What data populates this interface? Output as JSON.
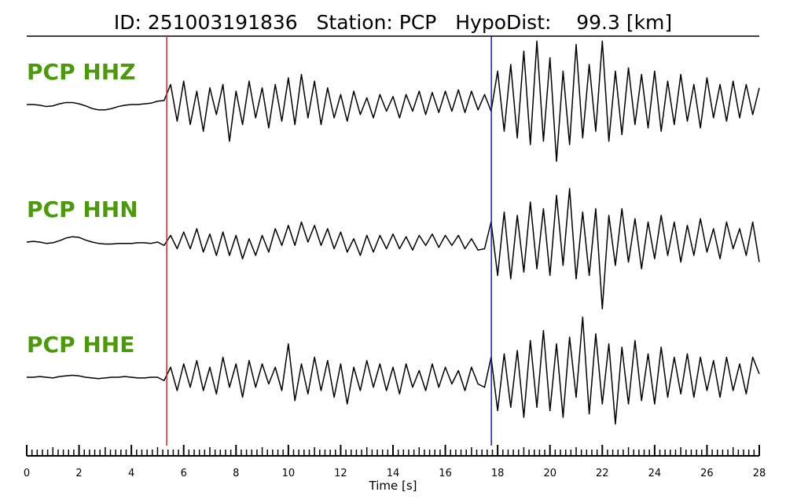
{
  "chart_data": {
    "type": "line",
    "title": "ID: 251003191836   Station: PCP   HypoDist:    99.3 [km]",
    "xlabel": "Time [s]",
    "xlim": [
      0,
      28
    ],
    "xticks": [
      0,
      2,
      4,
      6,
      8,
      10,
      12,
      14,
      16,
      18,
      20,
      22,
      24,
      26,
      28
    ],
    "xminor_step": 0.2,
    "ylim": [
      -1,
      1
    ],
    "label_color": "#4a9a0a",
    "picks": [
      {
        "x": 5.35,
        "color": "#e0242a"
      },
      {
        "x": 17.76,
        "color": "#1515d0"
      }
    ],
    "x": [
      0,
      0.25,
      0.5,
      0.75,
      1,
      1.25,
      1.5,
      1.75,
      2,
      2.25,
      2.5,
      2.75,
      3,
      3.25,
      3.5,
      3.75,
      4,
      4.25,
      4.5,
      4.75,
      5,
      5.25,
      5.5,
      5.75,
      6,
      6.25,
      6.5,
      6.75,
      7,
      7.25,
      7.5,
      7.75,
      8,
      8.25,
      8.5,
      8.75,
      9,
      9.25,
      9.5,
      9.75,
      10,
      10.25,
      10.5,
      10.75,
      11,
      11.25,
      11.5,
      11.75,
      12,
      12.25,
      12.5,
      12.75,
      13,
      13.25,
      13.5,
      13.75,
      14,
      14.25,
      14.5,
      14.75,
      15,
      15.25,
      15.5,
      15.75,
      16,
      16.25,
      16.5,
      16.75,
      17,
      17.25,
      17.5,
      17.75,
      18,
      18.25,
      18.5,
      18.75,
      19,
      19.25,
      19.5,
      19.75,
      20,
      20.25,
      20.5,
      20.75,
      21,
      21.25,
      21.5,
      21.75,
      22,
      22.25,
      22.5,
      22.75,
      23,
      23.25,
      23.5,
      23.75,
      24,
      24.25,
      24.5,
      24.75,
      25,
      25.25,
      25.5,
      25.75,
      26,
      26.25,
      26.5,
      26.75,
      27,
      27.25,
      27.5,
      27.75,
      28
    ],
    "series": [
      {
        "name": "PCP HHZ",
        "color": "#000000",
        "values": [
          0,
          0,
          -0.01,
          -0.03,
          -0.02,
          0.01,
          0.03,
          0.03,
          0.01,
          -0.02,
          -0.06,
          -0.08,
          -0.08,
          -0.06,
          -0.03,
          -0.01,
          0,
          0,
          0.01,
          0.02,
          0.05,
          0.06,
          0.3,
          -0.25,
          0.35,
          -0.3,
          0.2,
          -0.4,
          0.25,
          -0.15,
          0.3,
          -0.55,
          0.2,
          -0.3,
          0.35,
          -0.2,
          0.25,
          -0.35,
          0.3,
          -0.25,
          0.4,
          -0.3,
          0.45,
          -0.2,
          0.35,
          -0.3,
          0.25,
          -0.2,
          0.15,
          -0.25,
          0.2,
          -0.15,
          0.1,
          -0.2,
          0.15,
          -0.1,
          0.12,
          -0.2,
          0.15,
          -0.1,
          0.2,
          -0.15,
          0.18,
          -0.12,
          0.2,
          -0.1,
          0.22,
          -0.12,
          0.2,
          -0.08,
          0.15,
          -0.1,
          0.5,
          -0.4,
          0.6,
          -0.5,
          0.8,
          -0.6,
          0.95,
          -0.55,
          0.7,
          -0.85,
          0.5,
          -0.6,
          0.9,
          -0.5,
          0.6,
          -0.4,
          0.95,
          -0.55,
          0.5,
          -0.45,
          0.55,
          -0.3,
          0.45,
          -0.35,
          0.5,
          -0.4,
          0.35,
          -0.3,
          0.45,
          -0.25,
          0.3,
          -0.35,
          0.4,
          -0.2,
          0.3,
          -0.25,
          0.35,
          -0.2,
          0.3,
          -0.15,
          0.25
        ]
      },
      {
        "name": "PCP HHN",
        "color": "#000000",
        "values": [
          0,
          0.01,
          0,
          -0.02,
          -0.01,
          0.02,
          0.06,
          0.08,
          0.07,
          0.03,
          0,
          -0.02,
          -0.03,
          -0.03,
          -0.02,
          -0.02,
          -0.02,
          -0.01,
          -0.01,
          -0.02,
          0,
          -0.05,
          0.1,
          -0.1,
          0.15,
          -0.1,
          0.2,
          -0.15,
          0.12,
          -0.2,
          0.15,
          -0.2,
          0.1,
          -0.25,
          0.05,
          -0.2,
          0.1,
          -0.15,
          0.2,
          -0.05,
          0.25,
          -0.05,
          0.3,
          0,
          0.25,
          -0.05,
          0.2,
          -0.1,
          0.15,
          -0.15,
          0.05,
          -0.2,
          0.1,
          -0.15,
          0.1,
          -0.1,
          0.12,
          -0.1,
          0.08,
          -0.12,
          0.1,
          -0.05,
          0.12,
          -0.08,
          0.1,
          -0.05,
          0.1,
          -0.1,
          0.05,
          -0.12,
          -0.1,
          0.3,
          -0.5,
          0.45,
          -0.55,
          0.4,
          -0.45,
          0.6,
          -0.4,
          0.5,
          -0.5,
          0.7,
          -0.35,
          0.8,
          -0.55,
          0.45,
          -0.5,
          0.5,
          -1.0,
          0.4,
          -0.35,
          0.5,
          -0.3,
          0.35,
          -0.4,
          0.3,
          -0.25,
          0.4,
          -0.2,
          0.3,
          -0.3,
          0.25,
          -0.2,
          0.35,
          -0.15,
          0.2,
          -0.25,
          0.3,
          -0.1,
          0.2,
          -0.2,
          0.3,
          -0.3
        ]
      },
      {
        "name": "PCP HHE",
        "color": "#000000",
        "values": [
          0,
          0,
          0.01,
          0,
          -0.01,
          0.01,
          0.02,
          0.03,
          0.02,
          0,
          -0.01,
          -0.02,
          -0.01,
          0,
          0,
          0.01,
          0,
          -0.01,
          -0.01,
          0,
          0,
          -0.05,
          0.15,
          -0.2,
          0.2,
          -0.15,
          0.25,
          -0.2,
          0.15,
          -0.25,
          0.3,
          -0.15,
          0.2,
          -0.3,
          0.25,
          -0.15,
          0.2,
          -0.1,
          0.15,
          -0.2,
          0.5,
          -0.35,
          0.2,
          -0.25,
          0.3,
          -0.2,
          0.25,
          -0.3,
          0.2,
          -0.4,
          0.15,
          -0.2,
          0.25,
          -0.15,
          0.2,
          -0.2,
          0.15,
          -0.25,
          0.2,
          -0.15,
          0.1,
          -0.2,
          0.2,
          -0.15,
          0.15,
          -0.1,
          0.1,
          -0.2,
          0.15,
          -0.1,
          -0.15,
          0.3,
          -0.5,
          0.35,
          -0.45,
          0.4,
          -0.6,
          0.55,
          -0.45,
          0.7,
          -0.5,
          0.5,
          -0.6,
          0.6,
          -0.3,
          0.9,
          -0.55,
          0.65,
          -0.4,
          0.5,
          -0.7,
          0.45,
          -0.4,
          0.55,
          -0.35,
          0.35,
          -0.4,
          0.45,
          -0.3,
          0.3,
          -0.25,
          0.35,
          -0.3,
          0.3,
          -0.2,
          0.25,
          -0.3,
          0.3,
          -0.2,
          0.2,
          -0.25,
          0.3,
          0.05
        ]
      }
    ]
  }
}
